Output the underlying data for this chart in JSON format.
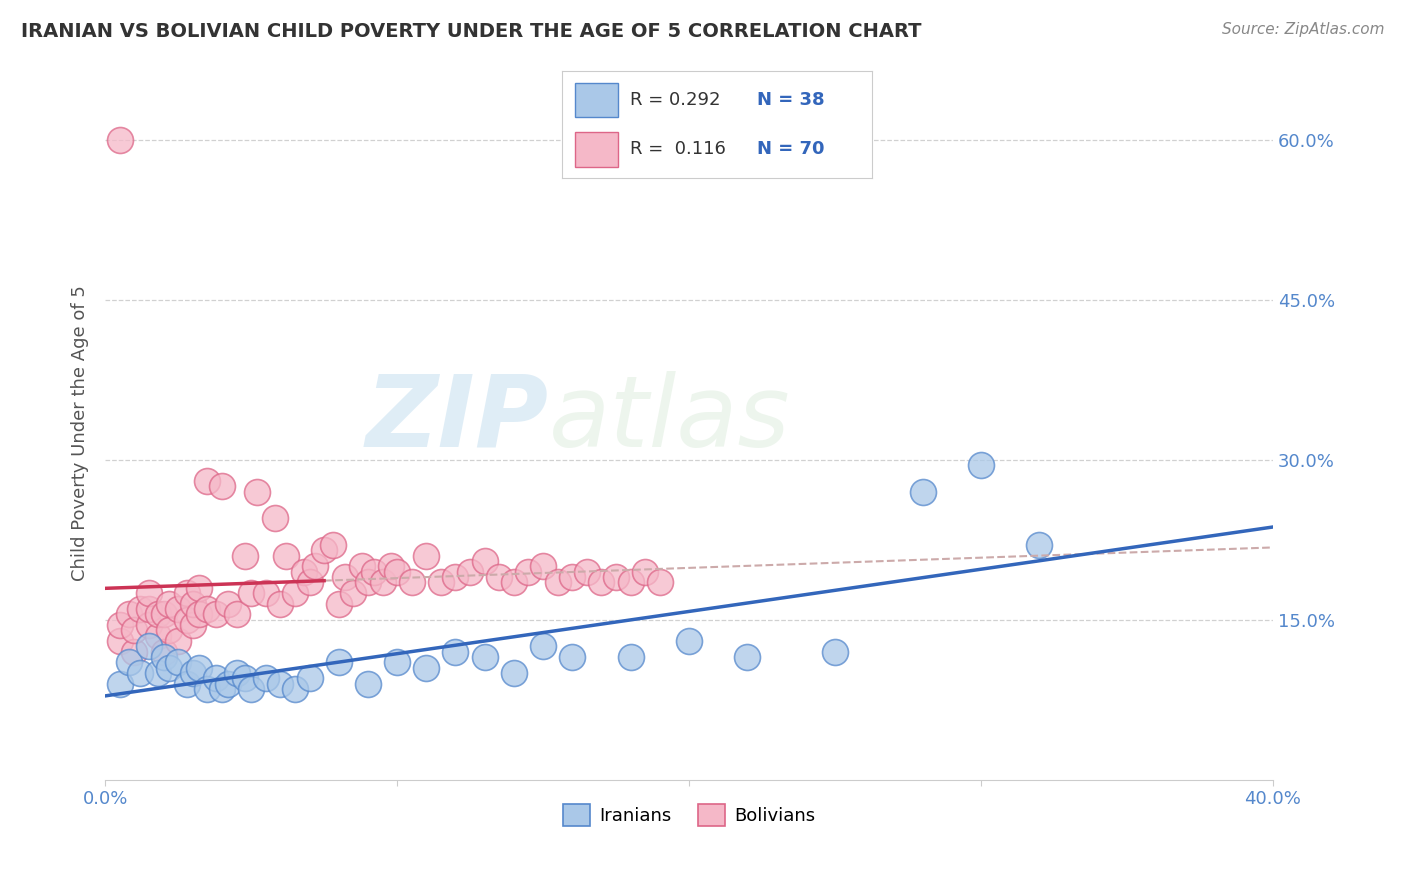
{
  "title": "IRANIAN VS BOLIVIAN CHILD POVERTY UNDER THE AGE OF 5 CORRELATION CHART",
  "source": "Source: ZipAtlas.com",
  "ylabel_text": "Child Poverty Under the Age of 5",
  "x_min": 0.0,
  "x_max": 0.4,
  "y_min": 0.0,
  "y_max": 0.65,
  "x_ticks": [
    0.0,
    0.1,
    0.2,
    0.3,
    0.4
  ],
  "x_tick_labels": [
    "0.0%",
    "",
    "",
    "",
    "40.0%"
  ],
  "y_ticks": [
    0.15,
    0.3,
    0.45,
    0.6
  ],
  "y_tick_labels": [
    "15.0%",
    "30.0%",
    "45.0%",
    "60.0%"
  ],
  "grid_color": "#cccccc",
  "background_color": "#ffffff",
  "iranians_color": "#aac8e8",
  "bolivians_color": "#f5b8c8",
  "iranians_edge_color": "#5588cc",
  "bolivians_edge_color": "#dd6688",
  "trend_iran_color": "#3366bb",
  "trend_bolivia_color": "#cc3355",
  "trend_dash_color": "#ccaaaa",
  "R_iran": 0.292,
  "N_iran": 38,
  "R_bolivia": 0.116,
  "N_bolivia": 70,
  "watermark_zip": "ZIP",
  "watermark_atlas": "atlas",
  "legend_iranians": "Iranians",
  "legend_bolivians": "Bolivians",
  "iranians_x": [
    0.005,
    0.008,
    0.012,
    0.015,
    0.018,
    0.02,
    0.022,
    0.025,
    0.028,
    0.03,
    0.032,
    0.035,
    0.038,
    0.04,
    0.042,
    0.045,
    0.048,
    0.05,
    0.055,
    0.06,
    0.065,
    0.07,
    0.08,
    0.09,
    0.1,
    0.11,
    0.12,
    0.13,
    0.14,
    0.15,
    0.16,
    0.18,
    0.2,
    0.22,
    0.25,
    0.28,
    0.3,
    0.32
  ],
  "iranians_y": [
    0.09,
    0.11,
    0.1,
    0.125,
    0.1,
    0.115,
    0.105,
    0.11,
    0.09,
    0.1,
    0.105,
    0.085,
    0.095,
    0.085,
    0.09,
    0.1,
    0.095,
    0.085,
    0.095,
    0.09,
    0.085,
    0.095,
    0.11,
    0.09,
    0.11,
    0.105,
    0.12,
    0.115,
    0.1,
    0.125,
    0.115,
    0.115,
    0.13,
    0.115,
    0.12,
    0.27,
    0.295,
    0.22
  ],
  "bolivians_x": [
    0.005,
    0.005,
    0.008,
    0.01,
    0.01,
    0.012,
    0.015,
    0.015,
    0.015,
    0.018,
    0.018,
    0.02,
    0.02,
    0.022,
    0.022,
    0.025,
    0.025,
    0.028,
    0.028,
    0.03,
    0.03,
    0.032,
    0.032,
    0.035,
    0.035,
    0.038,
    0.04,
    0.042,
    0.045,
    0.048,
    0.05,
    0.052,
    0.055,
    0.058,
    0.06,
    0.062,
    0.065,
    0.068,
    0.07,
    0.072,
    0.075,
    0.078,
    0.08,
    0.082,
    0.085,
    0.088,
    0.09,
    0.092,
    0.095,
    0.098,
    0.1,
    0.105,
    0.11,
    0.115,
    0.12,
    0.125,
    0.13,
    0.135,
    0.14,
    0.145,
    0.15,
    0.155,
    0.16,
    0.165,
    0.17,
    0.175,
    0.18,
    0.185,
    0.19,
    0.005
  ],
  "bolivians_y": [
    0.13,
    0.145,
    0.155,
    0.12,
    0.14,
    0.16,
    0.145,
    0.16,
    0.175,
    0.135,
    0.155,
    0.12,
    0.155,
    0.14,
    0.165,
    0.13,
    0.16,
    0.15,
    0.175,
    0.145,
    0.165,
    0.155,
    0.18,
    0.16,
    0.28,
    0.155,
    0.275,
    0.165,
    0.155,
    0.21,
    0.175,
    0.27,
    0.175,
    0.245,
    0.165,
    0.21,
    0.175,
    0.195,
    0.185,
    0.2,
    0.215,
    0.22,
    0.165,
    0.19,
    0.175,
    0.2,
    0.185,
    0.195,
    0.185,
    0.2,
    0.195,
    0.185,
    0.21,
    0.185,
    0.19,
    0.195,
    0.205,
    0.19,
    0.185,
    0.195,
    0.2,
    0.185,
    0.19,
    0.195,
    0.185,
    0.19,
    0.185,
    0.195,
    0.185,
    0.6
  ]
}
